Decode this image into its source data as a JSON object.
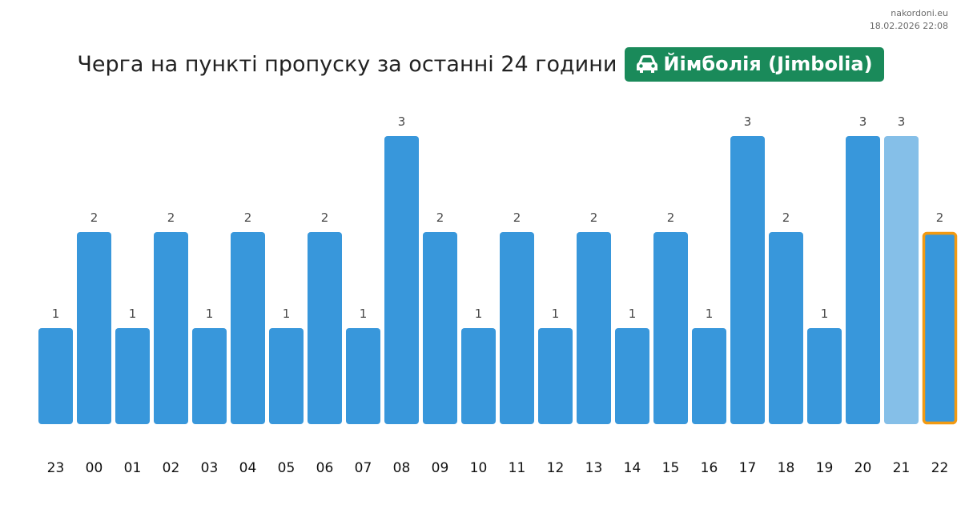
{
  "header": {
    "source": "nakordoni.eu",
    "timestamp": "18.02.2026 22:08"
  },
  "title": {
    "text": "Черга на пункті пропуску за останні 24 години",
    "badge_label": "Йімболія (Jimbolia)",
    "badge_icon": "car-icon",
    "badge_color": "#1a8a5a"
  },
  "colors": {
    "bar": "#3897db",
    "bar_pending": "#85bfe8",
    "highlight_border": "#f29a12"
  },
  "chart_data": {
    "type": "bar",
    "title": "Черга на пункті пропуску за останні 24 години",
    "xlabel": "",
    "ylabel": "",
    "ylim": [
      0,
      3
    ],
    "grid": false,
    "categories": [
      "23",
      "00",
      "01",
      "02",
      "03",
      "04",
      "05",
      "06",
      "07",
      "08",
      "09",
      "10",
      "11",
      "12",
      "13",
      "14",
      "15",
      "16",
      "17",
      "18",
      "19",
      "20",
      "21",
      "22"
    ],
    "values": [
      1,
      2,
      1,
      2,
      1,
      2,
      1,
      2,
      1,
      3,
      2,
      1,
      2,
      1,
      2,
      1,
      2,
      1,
      3,
      2,
      1,
      3,
      3,
      2
    ],
    "pending_index": 22,
    "highlight_index": 23
  }
}
